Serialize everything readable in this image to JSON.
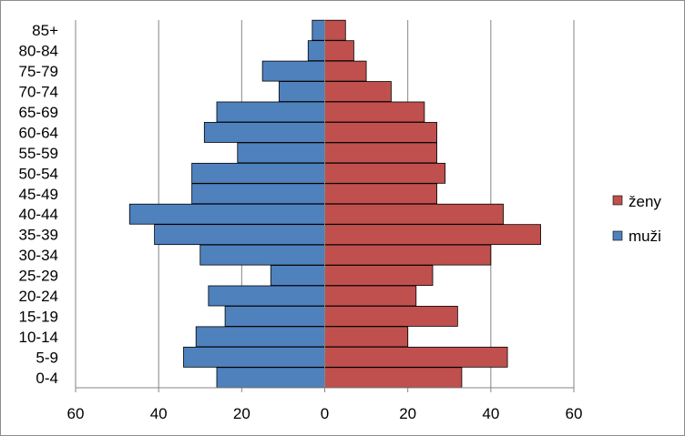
{
  "chart_data": {
    "type": "bar",
    "orientation": "horizontal",
    "chart_kind": "population-pyramid",
    "categories": [
      "0-4",
      "5-9",
      "10-14",
      "15-19",
      "20-24",
      "25-29",
      "30-34",
      "35-39",
      "40-44",
      "45-49",
      "50-54",
      "55-59",
      "60-64",
      "65-69",
      "70-74",
      "75-79",
      "80-84",
      "85+"
    ],
    "series": [
      {
        "name": "ženy",
        "color": "#c0504d",
        "side": "right",
        "values": [
          33,
          44,
          20,
          32,
          22,
          26,
          40,
          52,
          43,
          27,
          29,
          27,
          27,
          24,
          16,
          10,
          7,
          5
        ]
      },
      {
        "name": "muži",
        "color": "#4f81bd",
        "side": "left",
        "values": [
          26,
          34,
          31,
          24,
          28,
          13,
          30,
          41,
          47,
          32,
          32,
          21,
          29,
          26,
          11,
          15,
          4,
          3
        ]
      }
    ],
    "x_tick_labels": [
      "60",
      "40",
      "20",
      "0",
      "20",
      "40",
      "60"
    ],
    "xlim": [
      -60,
      60
    ],
    "x_ticks": [
      -60,
      -40,
      -20,
      0,
      20,
      40,
      60
    ],
    "grid": "vertical",
    "legend_position": "right",
    "title": "",
    "xlabel": "",
    "ylabel": ""
  }
}
